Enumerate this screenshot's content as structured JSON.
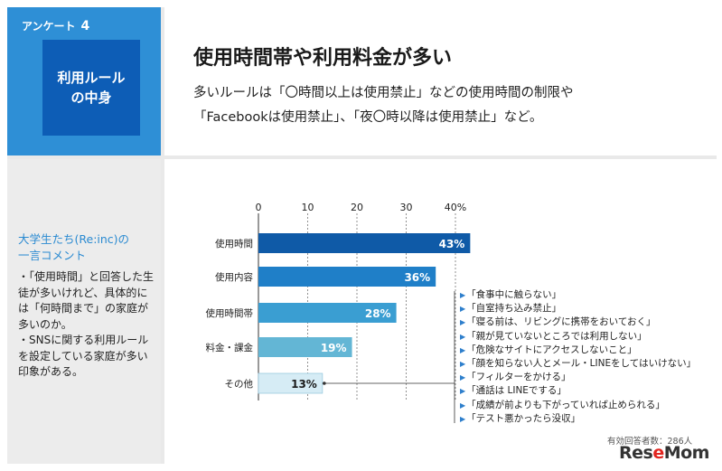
{
  "badge": {
    "label": "アンケート",
    "number": "4",
    "title": "利用ルール\nの中身"
  },
  "header": {
    "title": "使用時間帯や利用料金が多い",
    "desc_line1": "多いルールは「〇時間以上は使用禁止」などの使用時間の制限や",
    "desc_line2": "「Facebookは使用禁止」、「夜〇時以降は使用禁止」など。"
  },
  "comment": {
    "title_line1": "大学生たち(Re:inc)の",
    "title_line2": "一言コメント",
    "body1": "・「使用時間」と回答した生徒が多いけれど、具体的には「何時間まで」の家庭が多いのか。",
    "body2": "・SNSに関する利用ルールを設定している家庭が多い印象がある。"
  },
  "other_examples": [
    "「食事中に触らない」",
    "「自室持ち込み禁止」",
    "「寝る前は、リビングに携帯をおいておく」",
    "「親が見ていないところでは利用しない」",
    "「危険なサイトにアクセスしないこと」",
    "「顔を知らない人とメール・LINEをしてはいけない」",
    "「フィルターをかける」",
    "「通話は LINEでする」",
    "「成績が前よりも下がっていれば止められる」",
    "「テスト悪かったら没収」"
  ],
  "footnote": "有効回答者数：286人",
  "logo": "ReseMom",
  "chart_data": {
    "type": "bar",
    "orientation": "horizontal",
    "categories": [
      "使用時間",
      "使用内容",
      "使用時間帯",
      "料金・課金",
      "その他"
    ],
    "values": [
      43,
      36,
      28,
      19,
      13
    ],
    "value_labels": [
      "43%",
      "36%",
      "28%",
      "19%",
      "13%"
    ],
    "colors": [
      "#0f5aa7",
      "#1f7fc8",
      "#3a9ed2",
      "#63b6d5",
      "#d6ecf5"
    ],
    "label_colors": [
      "#ffffff",
      "#ffffff",
      "#ffffff",
      "#ffffff",
      "#1a1a1a"
    ],
    "xticks": [
      0,
      10,
      20,
      30,
      40
    ],
    "xtick_labels": [
      "0",
      "10",
      "20",
      "30",
      "40%"
    ],
    "xlim": [
      0,
      40
    ],
    "grid": true
  }
}
